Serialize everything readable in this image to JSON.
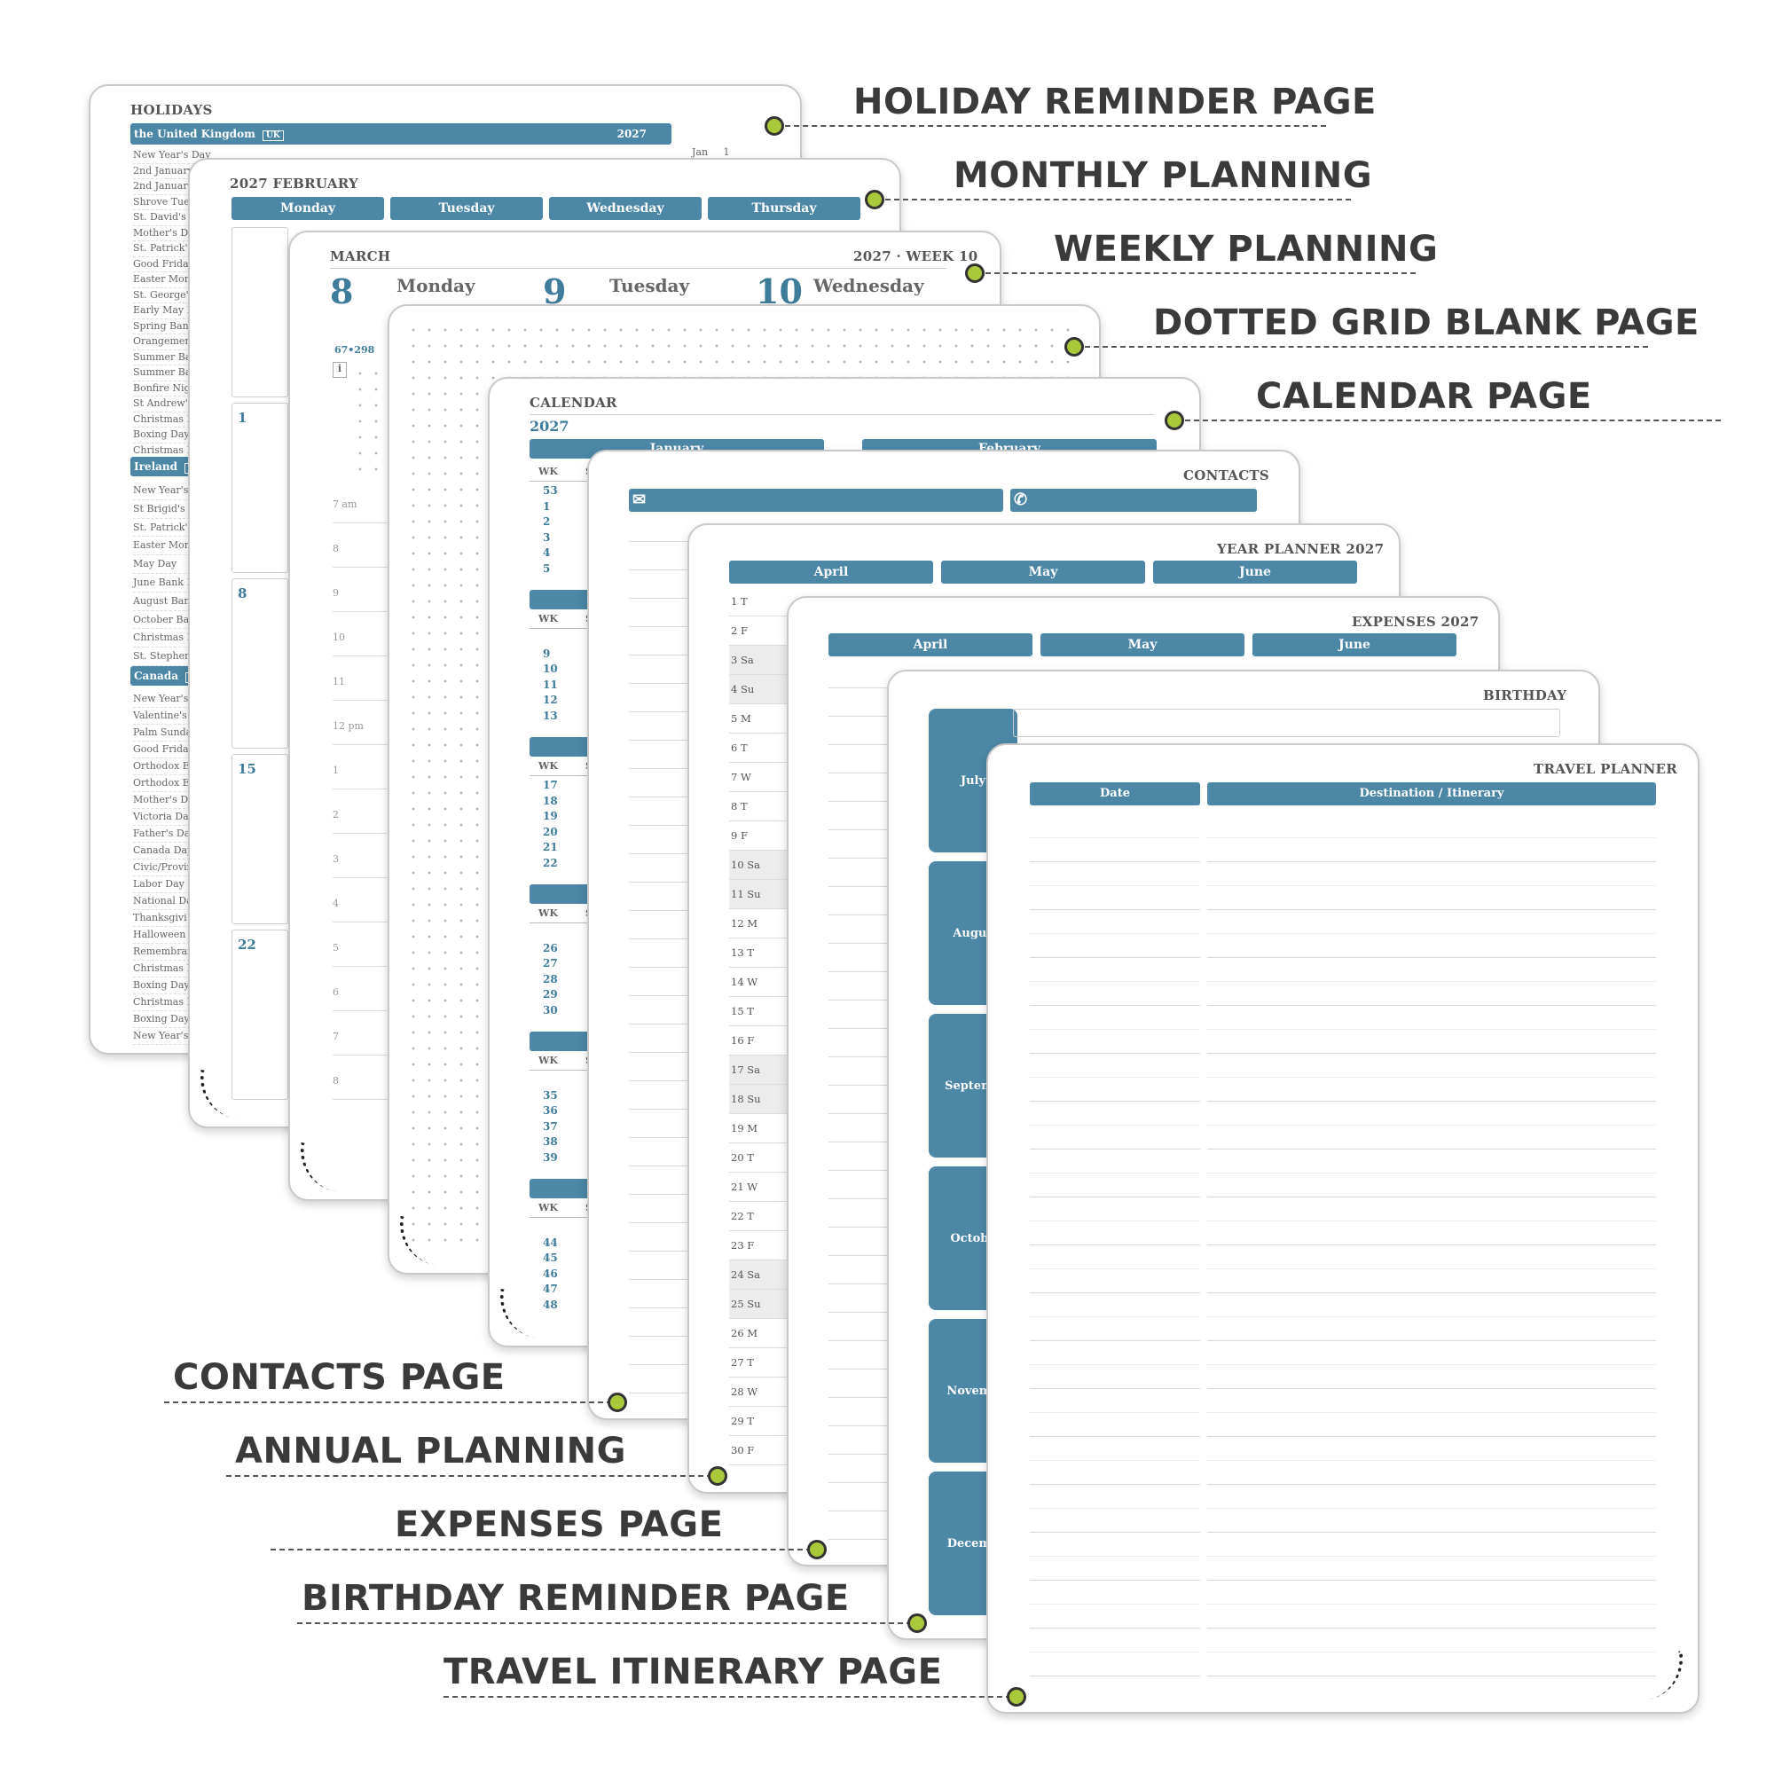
{
  "callouts": {
    "holiday": "HOLIDAY REMINDER PAGE",
    "monthly": "MONTHLY PLANNING",
    "weekly": "WEEKLY PLANNING",
    "dotted": "DOTTED GRID BLANK PAGE",
    "calendar": "CALENDAR PAGE",
    "contacts": "CONTACTS PAGE",
    "annual": "ANNUAL PLANNING",
    "expenses": "EXPENSES PAGE",
    "birthday": "BIRTHDAY REMINDER PAGE",
    "travel": "TRAVEL ITINERARY PAGE"
  },
  "holidays": {
    "title": "HOLIDAYS",
    "uk_header": "the United Kingdom",
    "uk_code": "UK",
    "year": "2027",
    "first_month": "Jan",
    "first_day": "1",
    "uk": [
      "New Year's Day",
      "2nd January",
      "2nd January",
      "Shrove Tues",
      "St. David's D",
      "Mother's Da",
      "St. Patrick's",
      "Good Friday",
      "Easter Mond",
      "St. George's",
      "Early May B",
      "Spring Bank",
      "Orangemen",
      "Summer Ba",
      "Summer Ba",
      "Bonfire Nigh",
      "St Andrew's",
      "Christmas D",
      "Boxing Day",
      "Christmas D",
      "Boxing Day"
    ],
    "ie_header": "Ireland",
    "ie_code": "IE",
    "ie": [
      "New Year's I",
      "St Brigid's D",
      "St. Patrick's",
      "Easter Mond",
      "May Day",
      "June Bank I",
      "August Banl",
      "October Ban",
      "Christmas D",
      "St. Stephen'"
    ],
    "ca_header": "Canada",
    "ca_code": "CA",
    "ca": [
      "New Year's I",
      "Valentine's",
      "Palm Sunda",
      "Good Friday",
      "Orthodox Ea",
      "Orthodox Ea",
      "Mother's Da",
      "Victoria Day",
      "Father's Day",
      "Canada Day",
      "Civic/Provin",
      "Labor Day",
      "National Da",
      "Thanksgivi",
      "Halloween",
      "Remembran",
      "Christmas D",
      "Boxing Day",
      "Christmas D",
      "Boxing Day",
      "New Year's I"
    ]
  },
  "monthly": {
    "title": "2027 FEBRUARY",
    "days": [
      "Monday",
      "Tuesday",
      "Wednesday",
      "Thursday"
    ],
    "dates": [
      "1",
      "8",
      "15",
      "22"
    ]
  },
  "weekly": {
    "month": "MARCH",
    "week": "2027 · WEEK 10",
    "d1": "8",
    "d1_name": "Monday",
    "d2": "9",
    "d2_name": "Tuesday",
    "d3": "10",
    "d3_name": "Wednesday",
    "daycount": "67•298",
    "info": "i",
    "hours": [
      "7 am",
      "8",
      "9",
      "10",
      "11",
      "12 pm",
      "1",
      "2",
      "3",
      "4",
      "5",
      "6",
      "7",
      "8"
    ]
  },
  "calendar": {
    "title": "CALENDAR",
    "year": "2027",
    "months": [
      "January",
      "February"
    ],
    "wk": "WK",
    "wk_s": "S",
    "blocks": [
      [
        "53",
        "1",
        "2",
        "3",
        "4",
        "5"
      ],
      [
        "9",
        "10",
        "11",
        "12",
        "13"
      ],
      [
        "17",
        "18",
        "19",
        "20",
        "21",
        "22"
      ],
      [
        "26",
        "27",
        "28",
        "29",
        "30"
      ],
      [
        "35",
        "36",
        "37",
        "38",
        "39"
      ],
      [
        "44",
        "45",
        "46",
        "47",
        "48"
      ]
    ]
  },
  "contacts": {
    "title": "CONTACTS",
    "mail_icon": "✉",
    "phone_icon": "✆"
  },
  "year_planner": {
    "title": "YEAR PLANNER 2027",
    "months": [
      "April",
      "May",
      "June"
    ],
    "days": [
      "1  T",
      "2  F",
      "3  Sa",
      "4  Su",
      "5  M",
      "6  T",
      "7  W",
      "8  T",
      "9  F",
      "10  Sa",
      "11  Su",
      "12  M",
      "13  T",
      "14  W",
      "15  T",
      "16  F",
      "17  Sa",
      "18  Su",
      "19  M",
      "20  T",
      "21  W",
      "22  T",
      "23  F",
      "24  Sa",
      "25  Su",
      "26  M",
      "27  T",
      "28  W",
      "29  T",
      "30  F"
    ]
  },
  "expenses": {
    "title": "EXPENSES 2027",
    "months": [
      "April",
      "May",
      "June"
    ]
  },
  "birthday": {
    "title": "BIRTHDAY",
    "months": [
      "July",
      "Augus",
      "Septemb",
      "Octobe",
      "Novemb",
      "Decemb"
    ]
  },
  "travel": {
    "title": "TRAVEL PLANNER",
    "col_date": "Date",
    "col_dest": "Destination / Itinerary"
  },
  "colors": {
    "accent": "#4c87a6",
    "dot": "#a9c93a"
  }
}
